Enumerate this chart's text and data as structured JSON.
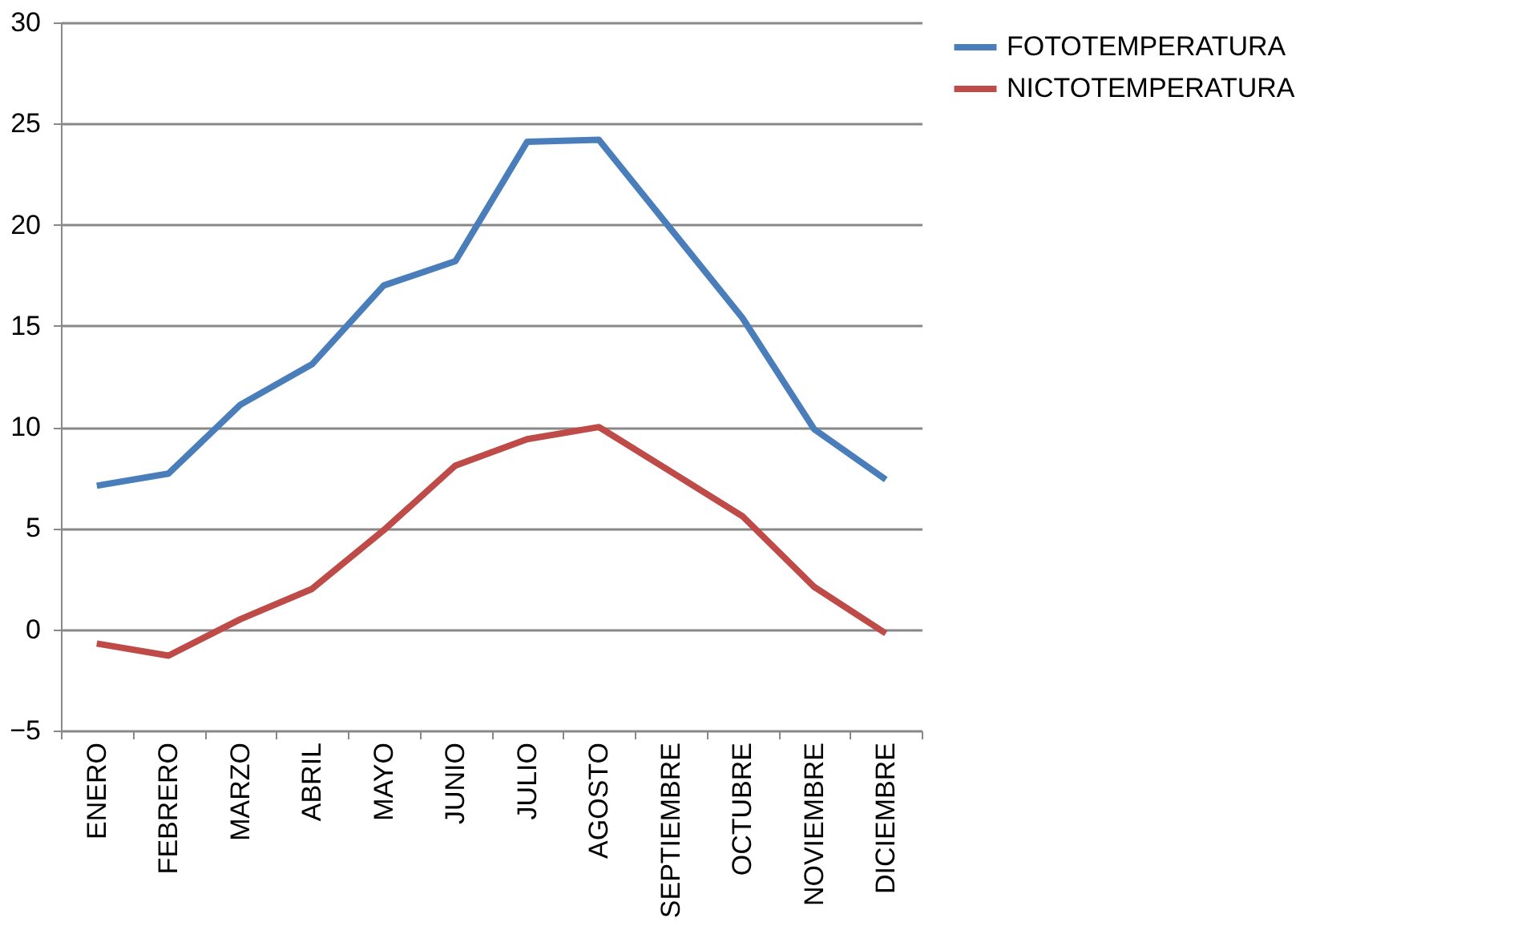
{
  "chart_data": {
    "type": "line",
    "categories": [
      "ENERO",
      "FEBRERO",
      "MARZO",
      "ABRIL",
      "MAYO",
      "JUNIO",
      "JULIO",
      "AGOSTO",
      "SEPTIEMBRE",
      "OCTUBRE",
      "NOVIEMBRE",
      "DICIEMBRE"
    ],
    "series": [
      {
        "name": "FOTOTEMPERATURA",
        "color": "#4a7ebb",
        "values": [
          7.1,
          7.7,
          11.1,
          13.1,
          17.0,
          18.2,
          24.1,
          24.2,
          19.8,
          15.4,
          9.9,
          7.4
        ]
      },
      {
        "name": "NICTOTEMPERATURA",
        "color": "#be4b48",
        "values": [
          -0.7,
          -1.3,
          0.5,
          2.0,
          4.9,
          8.1,
          9.4,
          10.0,
          7.8,
          5.6,
          2.1,
          -0.2
        ]
      }
    ],
    "ylim": [
      -5,
      30
    ],
    "yticks": [
      -5,
      0,
      5,
      10,
      15,
      20,
      25,
      30
    ],
    "grid": "y",
    "legend": "right",
    "marker": "none",
    "line_style": "solid"
  }
}
